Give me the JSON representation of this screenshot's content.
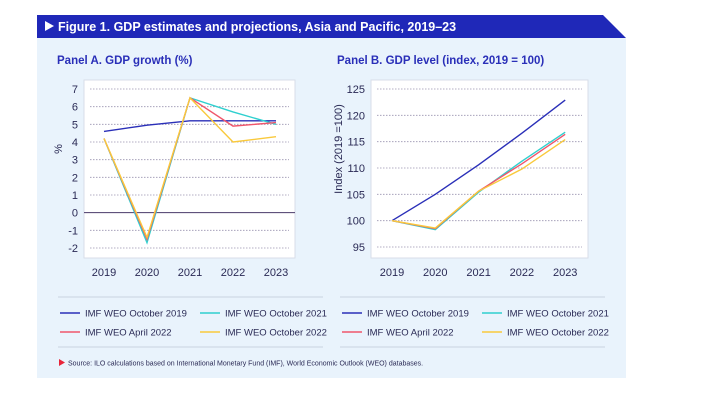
{
  "figure_title": "Figure 1. GDP estimates and projections, Asia and Pacific, 2019–23",
  "source": "Source: ILO calculations based on International Monetary Fund (IMF), World Economic Outlook (WEO) databases.",
  "colors": {
    "header": "#1f28b8",
    "background": "#e9f3fc",
    "accent_red": "#e8253a"
  },
  "chart_data": [
    {
      "type": "line",
      "title": "Panel A. GDP growth (%)",
      "ylabel": "%",
      "xlabel": "",
      "categories": [
        "2019",
        "2020",
        "2021",
        "2022",
        "2023"
      ],
      "yticks": [
        7,
        6,
        5,
        4,
        3,
        2,
        1,
        0,
        -1,
        -2
      ],
      "ylim": [
        -2.5,
        7.5
      ],
      "grid": true,
      "legend": "bottom",
      "series": [
        {
          "name": "IMF WEO October 2019",
          "color": "#2a2fb8",
          "values": [
            4.6,
            4.95,
            5.2,
            5.2,
            5.2
          ]
        },
        {
          "name": "IMF WEO October 2021",
          "color": "#2fd0cf",
          "values": [
            4.2,
            -1.7,
            6.5,
            5.7,
            5.0
          ]
        },
        {
          "name": "IMF WEO April 2022",
          "color": "#f0566b",
          "values": [
            4.2,
            -1.5,
            6.5,
            4.9,
            5.1
          ]
        },
        {
          "name": "IMF WEO October 2022",
          "color": "#f9c93c",
          "values": [
            4.2,
            -1.4,
            6.5,
            4.0,
            4.3
          ]
        }
      ]
    },
    {
      "type": "line",
      "title": "Panel B. GDP level (index, 2019 = 100)",
      "ylabel": "Index (2019 =100)",
      "xlabel": "",
      "categories": [
        "2019",
        "2020",
        "2021",
        "2022",
        "2023"
      ],
      "yticks": [
        125,
        120,
        115,
        110,
        105,
        100,
        95
      ],
      "ylim": [
        93.5,
        126.5
      ],
      "grid": true,
      "legend": "bottom",
      "series": [
        {
          "name": "IMF WEO October 2019",
          "color": "#2a2fb8",
          "values": [
            100,
            105.0,
            110.6,
            116.6,
            122.9
          ]
        },
        {
          "name": "IMF WEO October 2021",
          "color": "#2fd0cf",
          "values": [
            100,
            98.3,
            105.4,
            111.3,
            116.8
          ]
        },
        {
          "name": "IMF WEO April 2022",
          "color": "#f0566b",
          "values": [
            100,
            98.5,
            105.6,
            110.8,
            116.4
          ]
        },
        {
          "name": "IMF WEO October 2022",
          "color": "#f9c93c",
          "values": [
            100,
            98.6,
            105.6,
            109.8,
            115.4
          ]
        }
      ]
    }
  ]
}
